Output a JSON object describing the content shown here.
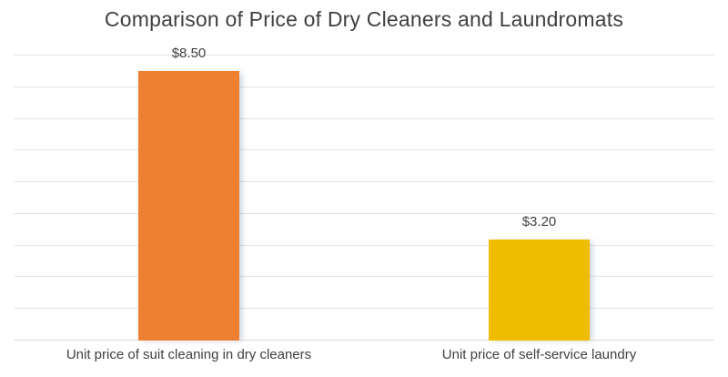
{
  "chart_data": {
    "type": "bar",
    "title": "Comparison of Price of Dry Cleaners and Laundromats",
    "categories": [
      "Unit price of suit cleaning in dry cleaners",
      "Unit price of self-service laundry"
    ],
    "values": [
      8.5,
      3.2
    ],
    "data_labels": [
      "$8.50",
      "$3.20"
    ],
    "series_colors": [
      "#ED8033",
      "#F0BC00"
    ],
    "xlabel": "",
    "ylabel": "",
    "ylim": [
      0,
      9
    ],
    "gridline_step": 1,
    "grid": "horizontal",
    "legend": "none",
    "gridline_color": "#E4E4E4",
    "axis_color": "#DEDEDE",
    "text_color": "#404040",
    "background_color": "#FFFFFF"
  }
}
